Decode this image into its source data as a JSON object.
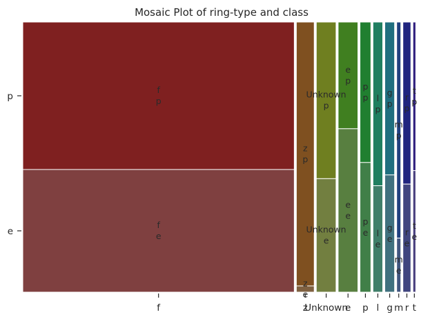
{
  "chart_data": {
    "type": "mosaic",
    "title": "Mosaic Plot of ring-type and class",
    "x_variable": "ring-type",
    "y_variable": "class",
    "categories": [
      "f",
      "z",
      "Unknown",
      "e",
      "p",
      "l",
      "g",
      "m",
      "r",
      "t"
    ],
    "tick_labels": [
      "f",
      "z",
      "Unknown",
      "e",
      "p",
      "l",
      "g",
      "m",
      "r",
      "t"
    ],
    "class_levels": [
      "e",
      "p"
    ],
    "y_tick_labels": [
      "p",
      "e"
    ],
    "column_fractions": [
      0.7126,
      0.0469,
      0.0519,
      0.0519,
      0.0286,
      0.0257,
      0.0257,
      0.0109,
      0.0209,
      0.0075
    ],
    "class_p_fraction": [
      0.546,
      0.977,
      0.58,
      0.395,
      0.52,
      0.606,
      0.566,
      0.8,
      0.6,
      0.55
    ],
    "series": [
      {
        "name": "e",
        "values": [
          0.454,
          0.023,
          0.42,
          0.605,
          0.48,
          0.394,
          0.434,
          0.2,
          0.4,
          0.45
        ]
      },
      {
        "name": "p",
        "values": [
          0.546,
          0.977,
          0.58,
          0.395,
          0.52,
          0.606,
          0.566,
          0.8,
          0.6,
          0.55
        ]
      }
    ],
    "colors": {
      "f": {
        "p": "#7f2020",
        "e": "#7f4040"
      },
      "z": {
        "p": "#7f5020",
        "e": "#7f6040"
      },
      "Unknown": {
        "p": "#6f7f20",
        "e": "#727f40"
      },
      "e": {
        "p": "#407f20",
        "e": "#587f40"
      },
      "p": {
        "p": "#207f30",
        "e": "#407f48"
      },
      "l": {
        "p": "#207f60",
        "e": "#407f6a"
      },
      "g": {
        "p": "#206f7f",
        "e": "#40717f"
      },
      "m": {
        "p": "#20407f",
        "e": "#40557f"
      },
      "r": {
        "p": "#20257f",
        "e": "#40457f"
      },
      "t": {
        "p": "#30207f",
        "e": "#4a407f"
      }
    },
    "grid": false,
    "legend": "none"
  }
}
